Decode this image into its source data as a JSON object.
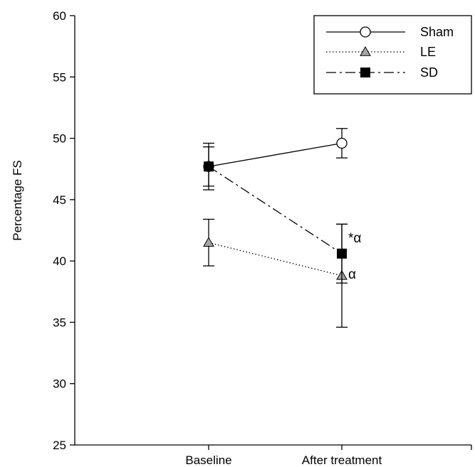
{
  "chart_data": {
    "type": "line",
    "title": "",
    "xlabel": "",
    "ylabel": "Percentage FS",
    "ylim": [
      25,
      60
    ],
    "yticks": [
      25,
      30,
      35,
      40,
      45,
      50,
      55,
      60
    ],
    "categories": [
      "Baseline",
      "After treatment"
    ],
    "legend": {
      "placement": "top-right"
    },
    "grid": false,
    "series": [
      {
        "name": "Sham",
        "line_style": "solid",
        "marker": "open-circle",
        "marker_color": "#ffffff",
        "values": [
          47.7,
          49.6
        ],
        "errors": [
          1.9,
          1.2
        ],
        "annotations": [
          "",
          ""
        ]
      },
      {
        "name": "LE",
        "line_style": "dotted",
        "marker": "triangle",
        "marker_color": "#a6a6a6",
        "values": [
          41.5,
          38.8
        ],
        "errors": [
          1.9,
          4.2
        ],
        "annotations": [
          "",
          "α"
        ]
      },
      {
        "name": "SD",
        "line_style": "dash-dot",
        "marker": "filled-square",
        "marker_color": "#000000",
        "values": [
          47.7,
          40.6
        ],
        "errors": [
          1.6,
          2.4
        ],
        "annotations": [
          "",
          "*α"
        ]
      }
    ]
  }
}
